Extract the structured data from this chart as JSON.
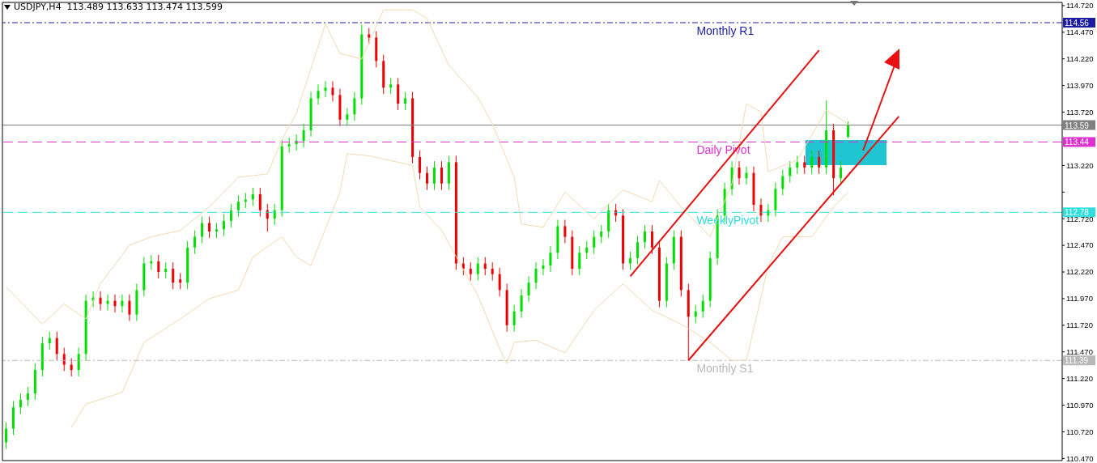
{
  "chart_data": {
    "type": "candlestick",
    "title": "USDJPY,H4  113.489 113.633 113.474 113.599",
    "categories": [
      null,
      null,
      null,
      null,
      null,
      null,
      null,
      null,
      null,
      null,
      null,
      null,
      null,
      null,
      null,
      null,
      null,
      null,
      null,
      null,
      null,
      null,
      null,
      null,
      null,
      null,
      null,
      null,
      null,
      null,
      null,
      null,
      null,
      null,
      null,
      null,
      null,
      null,
      null,
      null,
      null,
      null,
      null,
      null,
      null,
      null,
      null,
      null,
      null,
      null,
      null,
      null,
      null,
      null,
      null,
      null,
      null,
      null,
      null,
      null,
      null,
      null,
      null,
      null,
      null,
      null,
      null,
      null,
      null,
      null,
      null,
      null,
      null,
      null,
      null,
      null,
      null,
      null,
      null,
      null,
      null,
      null,
      null,
      null,
      null,
      null,
      null,
      null,
      null,
      null,
      null,
      null,
      null,
      null,
      null,
      null,
      null,
      null,
      null,
      null,
      null,
      null,
      null,
      null,
      null,
      null,
      null,
      null,
      null,
      null,
      null,
      null,
      null,
      null,
      null,
      null,
      null,
      null,
      null,
      null,
      null,
      null,
      null,
      null,
      null,
      null,
      null,
      null,
      null,
      null,
      null,
      null,
      null,
      null,
      null,
      null,
      null,
      null,
      null,
      null,
      null,
      null,
      null,
      null,
      null,
      null
    ],
    "series": [
      {
        "type": "candlestick",
        "ohlc": [
          [
            110.62,
            110.81,
            110.56,
            110.75
          ],
          [
            110.75,
            111.01,
            110.69,
            110.95
          ],
          [
            110.95,
            111.08,
            110.89,
            111.02
          ],
          [
            111.02,
            111.14,
            110.96,
            111.08
          ],
          [
            111.08,
            111.36,
            111.02,
            111.3
          ],
          [
            111.3,
            111.61,
            111.24,
            111.55
          ],
          [
            111.55,
            111.66,
            111.49,
            111.6
          ],
          [
            111.6,
            111.66,
            111.39,
            111.45
          ],
          [
            111.45,
            111.51,
            111.29,
            111.35
          ],
          [
            111.35,
            111.41,
            111.24,
            111.3
          ],
          [
            111.3,
            111.51,
            111.24,
            111.45
          ],
          [
            111.45,
            112.01,
            111.39,
            111.95
          ],
          [
            111.95,
            112.04,
            111.89,
            111.98
          ],
          [
            111.98,
            112.04,
            111.86,
            111.92
          ],
          [
            111.92,
            112.01,
            111.86,
            111.95
          ],
          [
            111.95,
            112.01,
            111.84,
            111.9
          ],
          [
            111.9,
            112.01,
            111.84,
            111.95
          ],
          [
            111.95,
            112.01,
            111.76,
            111.82
          ],
          [
            111.82,
            112.11,
            111.76,
            112.05
          ],
          [
            112.05,
            112.36,
            111.99,
            112.3
          ],
          [
            112.3,
            112.38,
            112.24,
            112.32
          ],
          [
            112.32,
            112.38,
            112.16,
            112.22
          ],
          [
            112.22,
            112.31,
            112.16,
            112.25
          ],
          [
            112.25,
            112.31,
            112.06,
            112.12
          ],
          [
            112.15,
            112.21,
            112.06,
            112.12
          ],
          [
            112.12,
            112.51,
            112.06,
            112.45
          ],
          [
            112.45,
            112.61,
            112.39,
            112.55
          ],
          [
            112.55,
            112.74,
            112.49,
            112.68
          ],
          [
            112.68,
            112.74,
            112.54,
            112.6
          ],
          [
            112.6,
            112.68,
            112.54,
            112.62
          ],
          [
            112.62,
            112.76,
            112.56,
            112.7
          ],
          [
            112.7,
            112.86,
            112.64,
            112.8
          ],
          [
            112.8,
            112.94,
            112.74,
            112.88
          ],
          [
            112.88,
            112.96,
            112.82,
            112.9
          ],
          [
            112.9,
            113.01,
            112.84,
            112.95
          ],
          [
            112.95,
            113.01,
            112.74,
            112.8
          ],
          [
            112.8,
            112.86,
            112.6,
            112.72
          ],
          [
            112.72,
            112.86,
            112.66,
            112.8
          ],
          [
            112.8,
            113.46,
            112.74,
            113.4
          ],
          [
            113.4,
            113.48,
            113.34,
            113.42
          ],
          [
            113.42,
            113.51,
            113.36,
            113.45
          ],
          [
            113.45,
            113.61,
            113.39,
            113.55
          ],
          [
            113.55,
            113.91,
            113.49,
            113.85
          ],
          [
            113.85,
            113.98,
            113.79,
            113.92
          ],
          [
            113.92,
            114.01,
            113.86,
            113.95
          ],
          [
            113.95,
            114.01,
            113.82,
            113.88
          ],
          [
            113.88,
            113.94,
            113.59,
            113.65
          ],
          [
            113.65,
            113.76,
            113.59,
            113.7
          ],
          [
            113.7,
            113.91,
            113.64,
            113.85
          ],
          [
            113.85,
            114.54,
            113.79,
            114.45
          ],
          [
            114.45,
            114.51,
            114.36,
            114.42
          ],
          [
            114.42,
            114.48,
            114.14,
            114.2
          ],
          [
            114.2,
            114.26,
            113.89,
            113.95
          ],
          [
            113.95,
            114.04,
            113.89,
            113.98
          ],
          [
            113.98,
            114.04,
            113.74,
            113.8
          ],
          [
            113.8,
            113.91,
            113.74,
            113.85
          ],
          [
            113.85,
            113.91,
            113.24,
            113.3
          ],
          [
            113.3,
            113.36,
            113.09,
            113.15
          ],
          [
            113.15,
            113.21,
            112.99,
            113.05
          ],
          [
            113.05,
            113.26,
            112.99,
            113.2
          ],
          [
            113.2,
            113.26,
            112.99,
            113.05
          ],
          [
            113.05,
            113.31,
            112.99,
            113.25
          ],
          [
            113.25,
            113.31,
            112.24,
            112.3
          ],
          [
            112.3,
            112.36,
            112.19,
            112.25
          ],
          [
            112.25,
            112.31,
            112.14,
            112.2
          ],
          [
            112.2,
            112.36,
            112.14,
            112.3
          ],
          [
            112.3,
            112.36,
            112.19,
            112.25
          ],
          [
            112.25,
            112.31,
            112.14,
            112.2
          ],
          [
            112.2,
            112.26,
            111.99,
            112.05
          ],
          [
            112.05,
            112.11,
            111.66,
            111.72
          ],
          [
            111.72,
            111.91,
            111.66,
            111.85
          ],
          [
            111.85,
            112.06,
            111.79,
            112.0
          ],
          [
            112.0,
            112.18,
            111.94,
            112.12
          ],
          [
            112.12,
            112.31,
            112.06,
            112.25
          ],
          [
            112.25,
            112.34,
            112.19,
            112.28
          ],
          [
            112.28,
            112.46,
            112.22,
            112.4
          ],
          [
            112.4,
            112.71,
            112.34,
            112.65
          ],
          [
            112.65,
            112.71,
            112.49,
            112.55
          ],
          [
            112.55,
            112.61,
            112.19,
            112.25
          ],
          [
            112.25,
            112.46,
            112.19,
            112.4
          ],
          [
            112.4,
            112.51,
            112.34,
            112.45
          ],
          [
            112.45,
            112.61,
            112.39,
            112.55
          ],
          [
            112.55,
            112.66,
            112.49,
            112.6
          ],
          [
            112.6,
            112.86,
            112.54,
            112.8
          ],
          [
            112.8,
            112.86,
            112.69,
            112.75
          ],
          [
            112.75,
            112.81,
            112.24,
            112.3
          ],
          [
            112.3,
            112.41,
            112.24,
            112.35
          ],
          [
            112.35,
            112.56,
            112.29,
            112.5
          ],
          [
            112.5,
            112.66,
            112.44,
            112.6
          ],
          [
            112.6,
            112.66,
            112.39,
            112.45
          ],
          [
            112.45,
            112.51,
            111.89,
            111.95
          ],
          [
            111.95,
            112.36,
            111.89,
            112.3
          ],
          [
            112.3,
            112.61,
            112.24,
            112.55
          ],
          [
            112.55,
            112.61,
            111.99,
            112.05
          ],
          [
            112.05,
            112.11,
            111.39,
            111.8
          ],
          [
            111.8,
            111.91,
            111.74,
            111.85
          ],
          [
            111.85,
            112.01,
            111.79,
            111.95
          ],
          [
            111.95,
            112.41,
            111.89,
            112.35
          ],
          [
            112.35,
            112.81,
            112.29,
            112.75
          ],
          [
            112.75,
            113.06,
            112.69,
            113.0
          ],
          [
            113.0,
            113.26,
            112.94,
            113.2
          ],
          [
            113.2,
            113.26,
            113.04,
            113.1
          ],
          [
            113.1,
            113.21,
            113.04,
            113.15
          ],
          [
            113.15,
            113.21,
            112.79,
            112.85
          ],
          [
            112.85,
            112.91,
            112.69,
            112.75
          ],
          [
            112.75,
            112.86,
            112.69,
            112.8
          ],
          [
            112.8,
            113.06,
            112.74,
            113.0
          ],
          [
            113.0,
            113.18,
            112.94,
            113.12
          ],
          [
            113.12,
            113.26,
            113.06,
            113.2
          ],
          [
            113.2,
            113.31,
            113.14,
            113.25
          ],
          [
            113.25,
            113.31,
            113.14,
            113.2
          ],
          [
            113.2,
            113.36,
            113.14,
            113.3
          ],
          [
            113.3,
            113.36,
            113.14,
            113.2
          ],
          [
            113.2,
            113.83,
            113.14,
            113.55
          ],
          [
            113.55,
            113.61,
            112.94,
            113.1
          ],
          [
            113.1,
            113.26,
            113.04,
            113.2
          ],
          [
            113.489,
            113.633,
            113.474,
            113.599
          ],
          null,
          null,
          null,
          null,
          null,
          null,
          null,
          null,
          null,
          null,
          null,
          null,
          null,
          null,
          null,
          null,
          null,
          null,
          null,
          null,
          null,
          null,
          null,
          null,
          null,
          null,
          null,
          null,
          null
        ],
        "colors": [
          "#00e000",
          "#00e000",
          "#00e000",
          "#00e000",
          "#00e000",
          "#00e000",
          "#00e000",
          "#f00000",
          "#f00000",
          "#f00000",
          "#00e000",
          "#00e000",
          "#00e000",
          "#f00000",
          "#00e000",
          "#f00000",
          "#00e000",
          "#f00000",
          "#00e000",
          "#00e000",
          "#00e000",
          "#f00000",
          "#00e000",
          "#f00000",
          "#f00000",
          "#00e000",
          "#00e000",
          "#00e000",
          "#f00000",
          "#00e000",
          "#00e000",
          "#00e000",
          "#00e000",
          "#00e000",
          "#00e000",
          "#f00000",
          "#f00000",
          "#00e000",
          "#00e000",
          "#00e000",
          "#00e000",
          "#00e000",
          "#00e000",
          "#00e000",
          "#00e000",
          "#f00000",
          "#f00000",
          "#00e000",
          "#00e000",
          "#00e000",
          "#f00000",
          "#f00000",
          "#f00000",
          "#00e000",
          "#f00000",
          "#00e000",
          "#f00000",
          "#f00000",
          "#f00000",
          "#00e000",
          "#f00000",
          "#00e000",
          "#f00000",
          "#f00000",
          "#f00000",
          "#00e000",
          "#f00000",
          "#f00000",
          "#f00000",
          "#f00000",
          "#00e000",
          "#00e000",
          "#00e000",
          "#00e000",
          "#00e000",
          "#00e000",
          "#00e000",
          "#f00000",
          "#f00000",
          "#00e000",
          "#00e000",
          "#00e000",
          "#00e000",
          "#00e000",
          "#f00000",
          "#f00000",
          "#00e000",
          "#00e000",
          "#00e000",
          "#f00000",
          "#f00000",
          "#00e000",
          "#00e000",
          "#f00000",
          "#f00000",
          "#00e000",
          "#00e000",
          "#00e000",
          "#00e000",
          "#00e000",
          "#00e000",
          "#f00000",
          "#00e000",
          "#f00000",
          "#f00000",
          "#00e000",
          "#00e000",
          "#00e000",
          "#00e000",
          "#00e000",
          "#f00000",
          "#00e000",
          "#f00000",
          "#00e000",
          "#f00000",
          "#00e000",
          "#00e000",
          null,
          null,
          null,
          null,
          null,
          null,
          null,
          null,
          null,
          null,
          null,
          null,
          null,
          null,
          null,
          null,
          null,
          null,
          null,
          null,
          null,
          null,
          null,
          null,
          null,
          null,
          null,
          null,
          null
        ]
      },
      {
        "type": "line",
        "color": "#f3d9b0",
        "values": [
          112.08,
          null,
          null,
          null,
          null,
          111.73,
          null,
          null,
          111.92,
          null,
          null,
          111.78,
          null,
          112.11,
          null,
          null,
          null,
          112.47,
          null,
          null,
          112.55,
          null,
          null,
          null,
          112.61,
          null,
          null,
          null,
          112.83,
          null,
          null,
          null,
          113.11,
          null,
          null,
          null,
          113.14,
          null,
          113.46,
          null,
          113.71,
          null,
          null,
          null,
          114.55,
          null,
          114.27,
          null,
          null,
          114.22,
          null,
          null,
          114.68,
          null,
          null,
          null,
          114.68,
          null,
          114.6,
          null,
          null,
          114.16,
          null,
          null,
          null,
          113.86,
          null,
          113.61,
          null,
          null,
          113.11,
          112.67,
          null,
          null,
          112.64,
          null,
          null,
          112.97,
          null,
          null,
          null,
          112.72,
          null,
          null,
          null,
          112.99,
          null,
          null,
          null,
          112.88,
          113.08,
          null,
          null,
          112.83,
          null,
          null,
          null,
          112.55,
          null,
          null,
          113.05,
          null,
          113.8,
          null,
          113.72,
          113.16,
          null,
          null,
          null,
          113.27,
          null,
          null,
          null,
          113.74,
          null,
          null,
          113.61,
          null,
          null,
          null,
          null,
          null,
          null,
          null,
          null,
          null,
          null,
          null,
          null,
          null,
          null,
          null,
          null,
          null,
          null,
          null,
          null,
          null,
          null,
          null,
          null,
          null,
          null,
          null,
          null,
          null
        ]
      },
      {
        "type": "line",
        "color": "#f3d9b0",
        "values": [
          null,
          null,
          null,
          null,
          null,
          null,
          null,
          null,
          null,
          110.76,
          null,
          110.98,
          null,
          null,
          null,
          null,
          111.09,
          null,
          null,
          111.56,
          null,
          null,
          null,
          null,
          111.78,
          null,
          null,
          null,
          111.97,
          null,
          null,
          null,
          112.05,
          null,
          112.36,
          null,
          null,
          null,
          112.55,
          null,
          112.36,
          null,
          112.28,
          null,
          null,
          null,
          112.97,
          113.33,
          null,
          null,
          113.31,
          null,
          null,
          null,
          null,
          null,
          113.22,
          112.83,
          null,
          null,
          112.61,
          null,
          null,
          null,
          null,
          112.0,
          null,
          null,
          111.5,
          111.36,
          111.56,
          null,
          null,
          111.58,
          null,
          null,
          null,
          111.46,
          null,
          null,
          null,
          111.86,
          null,
          null,
          null,
          112.11,
          null,
          null,
          null,
          111.86,
          null,
          null,
          null,
          111.73,
          null,
          null,
          null,
          111.56,
          null,
          null,
          111.39,
          null,
          111.39,
          null,
          null,
          112.28,
          null,
          112.55,
          null,
          null,
          null,
          112.55,
          null,
          null,
          112.83,
          null,
          112.97,
          null,
          null,
          null,
          null,
          null,
          null,
          null,
          null,
          null,
          null,
          null,
          null,
          null,
          null,
          null,
          null,
          null,
          null,
          null,
          null,
          null,
          null,
          null,
          null,
          null,
          null,
          null,
          null,
          null
        ]
      },
      {
        "type": "line",
        "color": "#e81010",
        "values": [
          null,
          null,
          null,
          null,
          null,
          null,
          null,
          null,
          null,
          null,
          null,
          null,
          null,
          null,
          null,
          null,
          null,
          null,
          null,
          null,
          null,
          null,
          null,
          null,
          null,
          null,
          null,
          null,
          null,
          null,
          null,
          null,
          null,
          null,
          null,
          null,
          null,
          null,
          null,
          null,
          null,
          null,
          null,
          null,
          null,
          null,
          null,
          null,
          null,
          null,
          null,
          null,
          null,
          null,
          null,
          null,
          null,
          null,
          null,
          null,
          null,
          null,
          null,
          null,
          null,
          null,
          null,
          null,
          null,
          null,
          null,
          null,
          null,
          null,
          null,
          null,
          null,
          null,
          null,
          null,
          null,
          null,
          null,
          null,
          null,
          null,
          112.18,
          null,
          null,
          null,
          null,
          null,
          null,
          null,
          null,
          null,
          null,
          null,
          null,
          null,
          null,
          null,
          null,
          null,
          null,
          null,
          null,
          null,
          null,
          null,
          null,
          null,
          114.3,
          null,
          null,
          null,
          null,
          null,
          null,
          null,
          null,
          null,
          null,
          null,
          null,
          null,
          null,
          null,
          null,
          null,
          null,
          null,
          null,
          null,
          null,
          null,
          null,
          null,
          null,
          null,
          null,
          null,
          null,
          null,
          null,
          null
        ]
      },
      {
        "type": "line",
        "color": "#e81010",
        "values": [
          null,
          null,
          null,
          null,
          null,
          null,
          null,
          null,
          null,
          null,
          null,
          null,
          null,
          null,
          null,
          null,
          null,
          null,
          null,
          null,
          null,
          null,
          null,
          null,
          null,
          null,
          null,
          null,
          null,
          null,
          null,
          null,
          null,
          null,
          null,
          null,
          null,
          null,
          null,
          null,
          null,
          null,
          null,
          null,
          null,
          null,
          null,
          null,
          null,
          null,
          null,
          null,
          null,
          null,
          null,
          null,
          null,
          null,
          null,
          null,
          null,
          null,
          null,
          null,
          null,
          null,
          null,
          null,
          null,
          null,
          null,
          null,
          null,
          null,
          null,
          null,
          null,
          null,
          null,
          null,
          null,
          null,
          null,
          null,
          null,
          null,
          null,
          null,
          null,
          null,
          null,
          null,
          null,
          null,
          111.39,
          null,
          null,
          null,
          null,
          null,
          null,
          null,
          null,
          null,
          null,
          null,
          null,
          null,
          null,
          null,
          null,
          null,
          null,
          null,
          null,
          null,
          null,
          null,
          null,
          null,
          null,
          null,
          null,
          113.68,
          null,
          null,
          null,
          null,
          null,
          null,
          null,
          null,
          null,
          null,
          null,
          null,
          null,
          null,
          null,
          null,
          null,
          null,
          null,
          null,
          null,
          null
        ]
      }
    ],
    "ylim": [
      110.45,
      114.75
    ],
    "yticks": [
      {
        "value": 114.72,
        "label": "114.720"
      },
      {
        "value": 114.47,
        "label": "114.470"
      },
      {
        "value": 114.22,
        "label": "114.220"
      },
      {
        "value": 113.97,
        "label": "113.970"
      },
      {
        "value": 113.72,
        "label": "113.720"
      },
      {
        "value": 113.22,
        "label": "113.220"
      },
      {
        "value": 112.97,
        "label": null
      },
      {
        "value": 112.72,
        "label": "112.720"
      },
      {
        "value": 112.47,
        "label": "112.470"
      },
      {
        "value": 112.22,
        "label": "112.220"
      },
      {
        "value": 111.97,
        "label": "111.970"
      },
      {
        "value": 111.72,
        "label": "111.720"
      },
      {
        "value": 111.47,
        "label": "111.470"
      },
      {
        "value": 111.22,
        "label": "111.220"
      },
      {
        "value": 110.97,
        "label": "110.970"
      },
      {
        "value": 110.72,
        "label": "110.720"
      },
      {
        "value": 110.47,
        "label": "110.470"
      }
    ],
    "tick_labels": "y",
    "ref_lines": [
      {
        "axis": "y",
        "value": 114.56,
        "label": "Monthly R1",
        "color": "#1c1ca0",
        "line_style": "dotted"
      },
      {
        "axis": "y",
        "value": 113.599,
        "color": "#808080",
        "line_style": "solid"
      },
      {
        "axis": "y",
        "value": 113.44,
        "label": "Daily Pivot",
        "color": "#e030d0",
        "line_style": "dashed"
      },
      {
        "axis": "y",
        "value": 112.78,
        "label": "WeeklyPivot",
        "color": "#30dede",
        "line_style": "dashed"
      },
      {
        "axis": "y",
        "value": 111.39,
        "label": "Monthly S1",
        "color": "#b8b8b8",
        "line_style": "dotted"
      }
    ],
    "annotations": [
      "114.56",
      "113.59",
      "113.44",
      "112.78",
      "111.39"
    ]
  }
}
